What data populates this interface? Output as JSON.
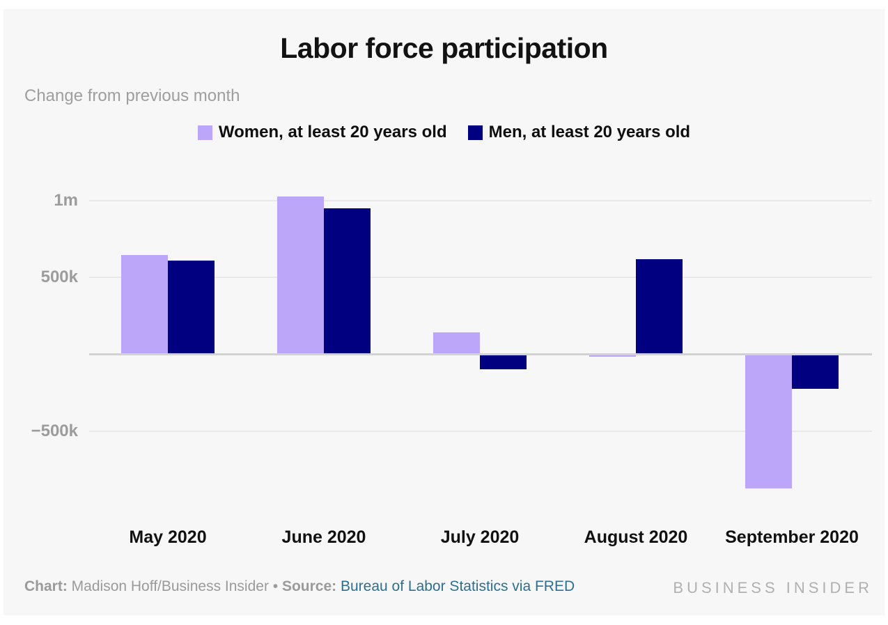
{
  "header": {
    "title": "Labor force participation",
    "subtitle": "Change from previous month"
  },
  "legend": [
    {
      "label": "Women, at least 20 years old",
      "color": "#bba6fa"
    },
    {
      "label": "Men, at least 20 years old",
      "color": "#010080"
    }
  ],
  "chart_data": {
    "type": "bar",
    "title": "Labor force participation",
    "subtitle": "Change from previous month",
    "xlabel": "",
    "ylabel": "",
    "categories": [
      "May 2020",
      "June 2020",
      "July 2020",
      "August 2020",
      "September 2020"
    ],
    "series": [
      {
        "name": "Women, at least 20 years old",
        "color": "#bba6fa",
        "values": [
          640000,
          1020000,
          135000,
          -10000,
          -865000
        ]
      },
      {
        "name": "Men, at least 20 years old",
        "color": "#010080",
        "values": [
          600000,
          940000,
          -90000,
          610000,
          -216000
        ]
      }
    ],
    "ylim": [
      -900000,
      1100000
    ],
    "yticks": [
      {
        "value": 1000000,
        "label": "1m"
      },
      {
        "value": 500000,
        "label": "500k"
      },
      {
        "value": -500000,
        "label": "−500k"
      }
    ],
    "grid": true,
    "legend_position": "top"
  },
  "footer": {
    "chart_label": "Chart:",
    "chart_credit": " Madison Hoff/Business Insider ",
    "separator": "• ",
    "source_label": "Source:",
    "source_text": " Bureau of Labor Statistics via FRED",
    "brand": "BUSINESS INSIDER"
  },
  "colors": {
    "card_background": "#f7f7f7",
    "page_background": "#ffffff",
    "women_bar": "#bba6fa",
    "men_bar": "#010080",
    "gridline": "#e9e9e9",
    "zero_line": "#d2d2d2",
    "axis_text": "#9c9c9c",
    "subtitle_text": "#9e9e9e",
    "footer_text": "#9a9a9a",
    "source_link": "#2e6e8e",
    "brand_text": "#b0b0b0"
  }
}
